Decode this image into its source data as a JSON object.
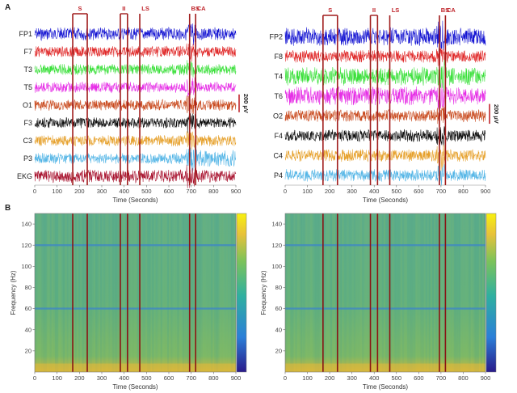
{
  "panel_labels": {
    "a": "A",
    "b": "B"
  },
  "chart_data": [
    {
      "type": "line",
      "panel": "A",
      "xlabel": "Time (Seconds)",
      "xlim": [
        0,
        900
      ],
      "x_ticks": [
        0,
        100,
        200,
        300,
        400,
        500,
        600,
        700,
        800,
        900
      ],
      "scale_bar_label": "200 µV",
      "channels": [
        "FP1",
        "F7",
        "T3",
        "T5",
        "O1",
        "F3",
        "C3",
        "P3",
        "EKG"
      ],
      "channel_colors": [
        "#1414d2",
        "#e02828",
        "#3ae03a",
        "#e62ee6",
        "#c94a1e",
        "#0b0b0b",
        "#e6a02a",
        "#53b5e6",
        "#a8122e"
      ],
      "events": [
        {
          "label": "S",
          "start": 170,
          "end": 235
        },
        {
          "label": "II",
          "start": 383,
          "end": 415
        },
        {
          "label": "LS",
          "start": 470,
          "end": 470
        },
        {
          "label": "BS",
          "start": 693,
          "end": 693
        },
        {
          "label": "CA",
          "start": 720,
          "end": 720
        }
      ]
    },
    {
      "type": "line",
      "panel": "A",
      "xlabel": "Time (Seconds)",
      "xlim": [
        0,
        900
      ],
      "x_ticks": [
        0,
        100,
        200,
        300,
        400,
        500,
        600,
        700,
        800,
        900
      ],
      "scale_bar_label": "200 µV",
      "channels": [
        "FP2",
        "F8",
        "T4",
        "T6",
        "O2",
        "F4",
        "C4",
        "P4"
      ],
      "channel_colors": [
        "#1414d2",
        "#e02828",
        "#3ae03a",
        "#e62ee6",
        "#c94a1e",
        "#0b0b0b",
        "#e6a02a",
        "#53b5e6"
      ],
      "events": [
        {
          "label": "S",
          "start": 170,
          "end": 235
        },
        {
          "label": "II",
          "start": 383,
          "end": 415
        },
        {
          "label": "LS",
          "start": 470,
          "end": 470
        },
        {
          "label": "BS",
          "start": 693,
          "end": 693
        },
        {
          "label": "CA",
          "start": 720,
          "end": 720
        }
      ]
    },
    {
      "type": "heatmap",
      "panel": "B",
      "xlabel": "Time (Seconds)",
      "ylabel": "Frequency (Hz)",
      "xlim": [
        0,
        900
      ],
      "ylim": [
        0,
        150
      ],
      "x_ticks": [
        0,
        100,
        200,
        300,
        400,
        500,
        600,
        700,
        800,
        900
      ],
      "y_ticks": [
        20,
        40,
        60,
        80,
        100,
        120,
        140
      ],
      "colormap": [
        "#2a1a8a",
        "#2b7fd8",
        "#2fb0a0",
        "#7cc35a",
        "#e8c23a",
        "#f8f010"
      ],
      "horizontal_bands_hz": [
        60,
        120
      ],
      "event_lines": [
        170,
        235,
        383,
        415,
        470,
        693,
        720
      ]
    },
    {
      "type": "heatmap",
      "panel": "B",
      "xlabel": "Time (Seconds)",
      "ylabel": "Frequency (Hz)",
      "xlim": [
        0,
        900
      ],
      "ylim": [
        0,
        150
      ],
      "x_ticks": [
        0,
        100,
        200,
        300,
        400,
        500,
        600,
        700,
        800,
        900
      ],
      "y_ticks": [
        20,
        40,
        60,
        80,
        100,
        120,
        140
      ],
      "colormap": [
        "#2a1a8a",
        "#2b7fd8",
        "#2fb0a0",
        "#7cc35a",
        "#e8c23a",
        "#f8f010"
      ],
      "horizontal_bands_hz": [
        60,
        120
      ],
      "event_lines": [
        170,
        235,
        383,
        415,
        470,
        693,
        720
      ]
    }
  ]
}
